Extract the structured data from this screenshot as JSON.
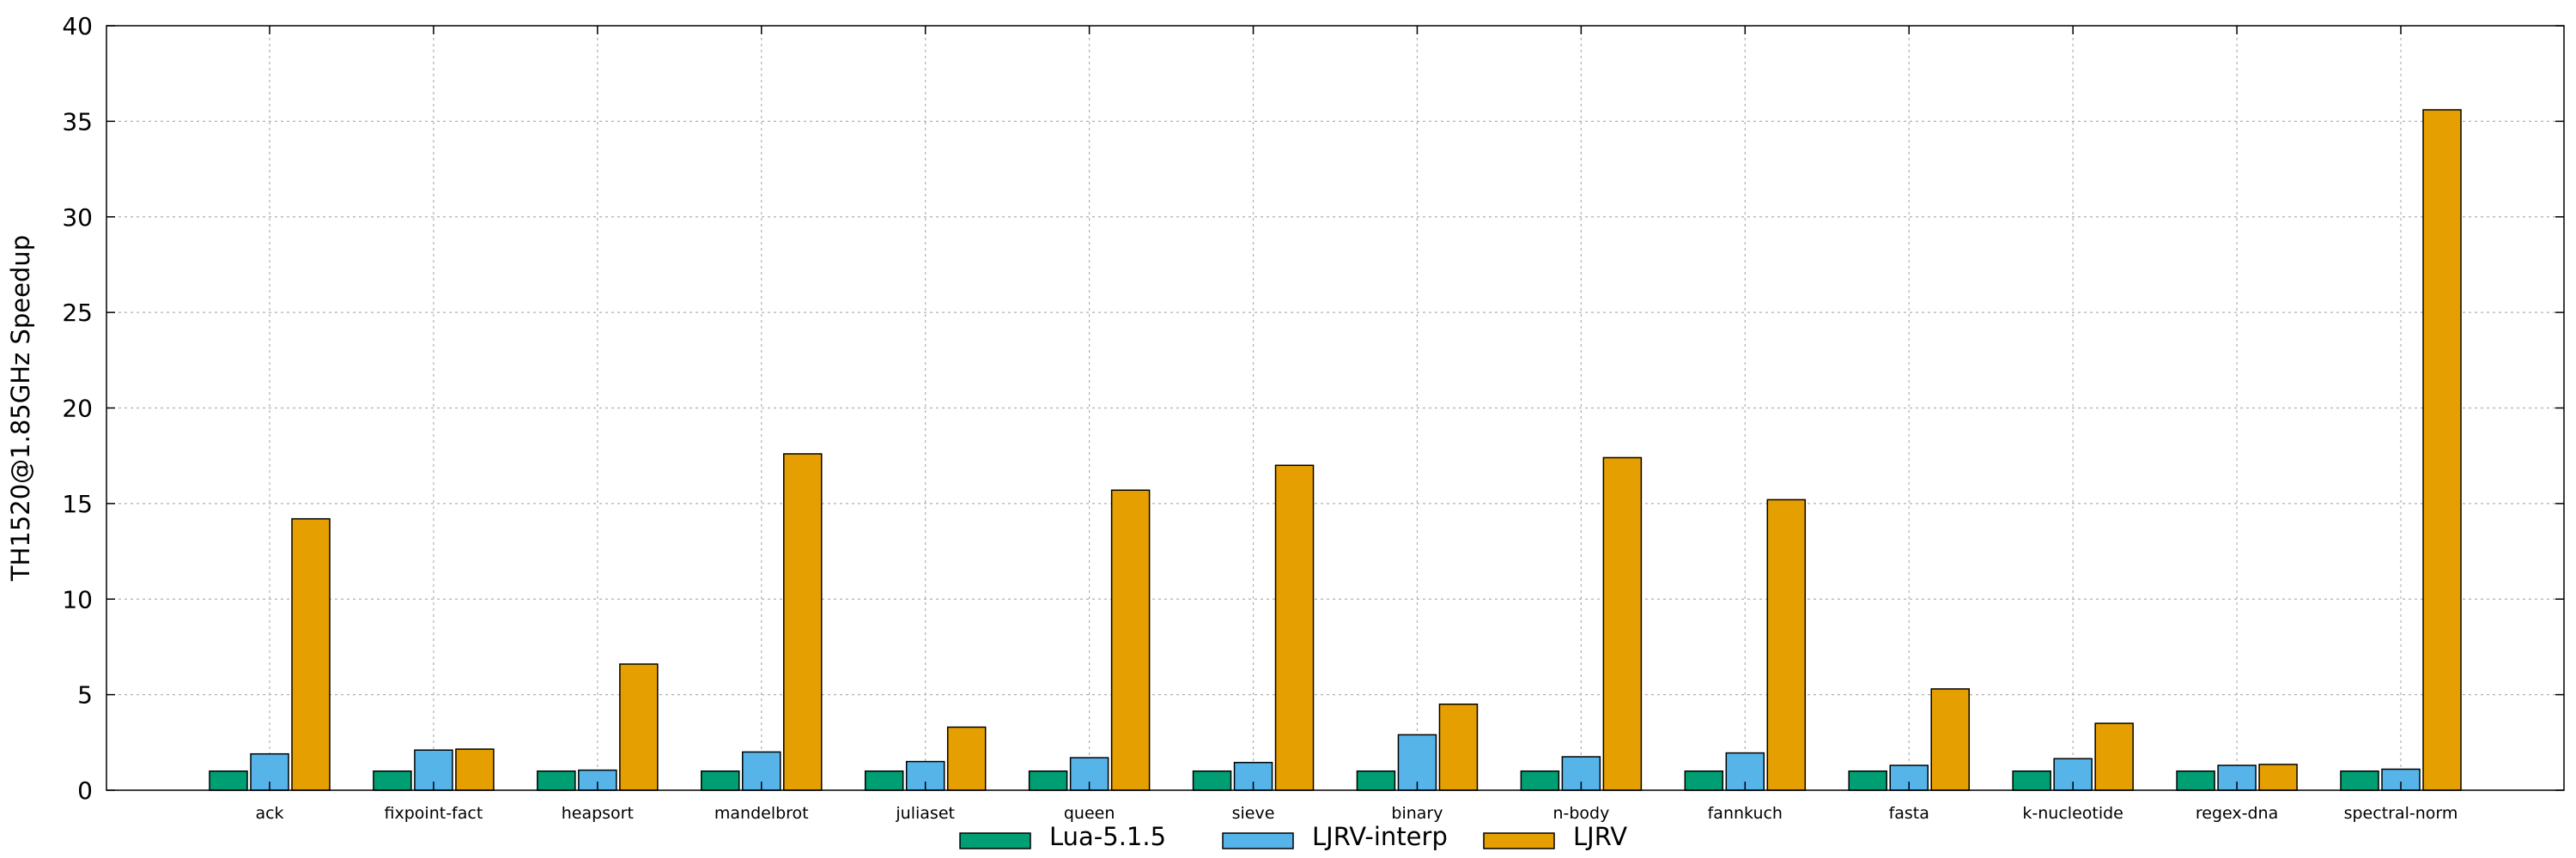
{
  "chart_data": {
    "type": "bar",
    "title": "",
    "xlabel": "",
    "ylabel": "TH1520@1.85GHz Speedup",
    "ylim": [
      0,
      40
    ],
    "yticks": [
      0,
      5,
      10,
      15,
      20,
      25,
      30,
      35,
      40
    ],
    "grid": true,
    "legend_position": "bottom-center",
    "categories": [
      "ack",
      "fixpoint-fact",
      "heapsort",
      "mandelbrot",
      "juliaset",
      "queen",
      "sieve",
      "binary",
      "n-body",
      "fannkuch",
      "fasta",
      "k-nucleotide",
      "regex-dna",
      "spectral-norm"
    ],
    "series": [
      {
        "name": "Lua-5.1.5",
        "color": "#009e73",
        "values": [
          1,
          1,
          1,
          1,
          1,
          1,
          1,
          1,
          1,
          1,
          1,
          1,
          1,
          1
        ]
      },
      {
        "name": "LJRV-interp",
        "color": "#56b4e9",
        "values": [
          1.9,
          2.1,
          1.05,
          2.0,
          1.5,
          1.7,
          1.45,
          2.9,
          1.75,
          1.95,
          1.3,
          1.65,
          1.3,
          1.1
        ]
      },
      {
        "name": "LJRV",
        "color": "#e69f00",
        "values": [
          14.2,
          2.15,
          6.6,
          17.6,
          3.3,
          15.7,
          17.0,
          4.5,
          17.4,
          15.2,
          5.3,
          3.5,
          1.35,
          35.6
        ]
      }
    ]
  }
}
